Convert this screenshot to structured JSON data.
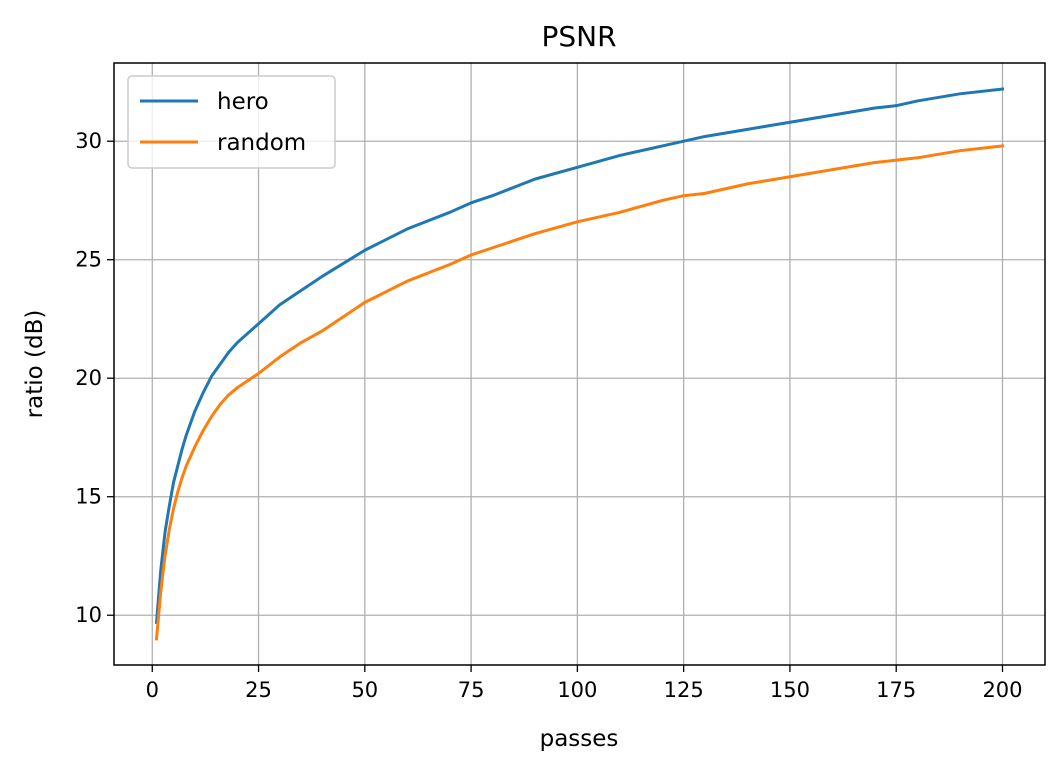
{
  "chart_data": {
    "type": "line",
    "title": "PSNR",
    "xlabel": "passes",
    "ylabel": "ratio (dB)",
    "xlim": [
      -9,
      210
    ],
    "ylim": [
      7.9,
      33.3
    ],
    "xticks": [
      0,
      25,
      50,
      75,
      100,
      125,
      150,
      175,
      200
    ],
    "yticks": [
      10,
      15,
      20,
      25,
      30
    ],
    "grid": true,
    "legend_position": "top-left",
    "x": [
      1,
      2,
      3,
      4,
      5,
      6,
      7,
      8,
      10,
      12,
      14,
      16,
      18,
      20,
      25,
      30,
      35,
      40,
      50,
      60,
      70,
      75,
      80,
      90,
      100,
      110,
      120,
      125,
      130,
      140,
      150,
      160,
      170,
      175,
      180,
      190,
      200
    ],
    "series": [
      {
        "name": "hero",
        "color": "#1f77b4",
        "values": [
          9.7,
          11.9,
          13.5,
          14.6,
          15.6,
          16.3,
          17.0,
          17.6,
          18.6,
          19.4,
          20.1,
          20.6,
          21.1,
          21.5,
          22.3,
          23.1,
          23.7,
          24.3,
          25.4,
          26.3,
          27.0,
          27.4,
          27.7,
          28.4,
          28.9,
          29.4,
          29.8,
          30.0,
          30.2,
          30.5,
          30.8,
          31.1,
          31.4,
          31.5,
          31.7,
          32.0,
          32.2
        ]
      },
      {
        "name": "random",
        "color": "#ff7f0e",
        "values": [
          9.0,
          11.0,
          12.5,
          13.6,
          14.5,
          15.2,
          15.8,
          16.3,
          17.1,
          17.8,
          18.4,
          18.9,
          19.3,
          19.6,
          20.2,
          20.9,
          21.5,
          22.0,
          23.2,
          24.1,
          24.8,
          25.2,
          25.5,
          26.1,
          26.6,
          27.0,
          27.5,
          27.7,
          27.8,
          28.2,
          28.5,
          28.8,
          29.1,
          29.2,
          29.3,
          29.6,
          29.8
        ]
      }
    ]
  }
}
